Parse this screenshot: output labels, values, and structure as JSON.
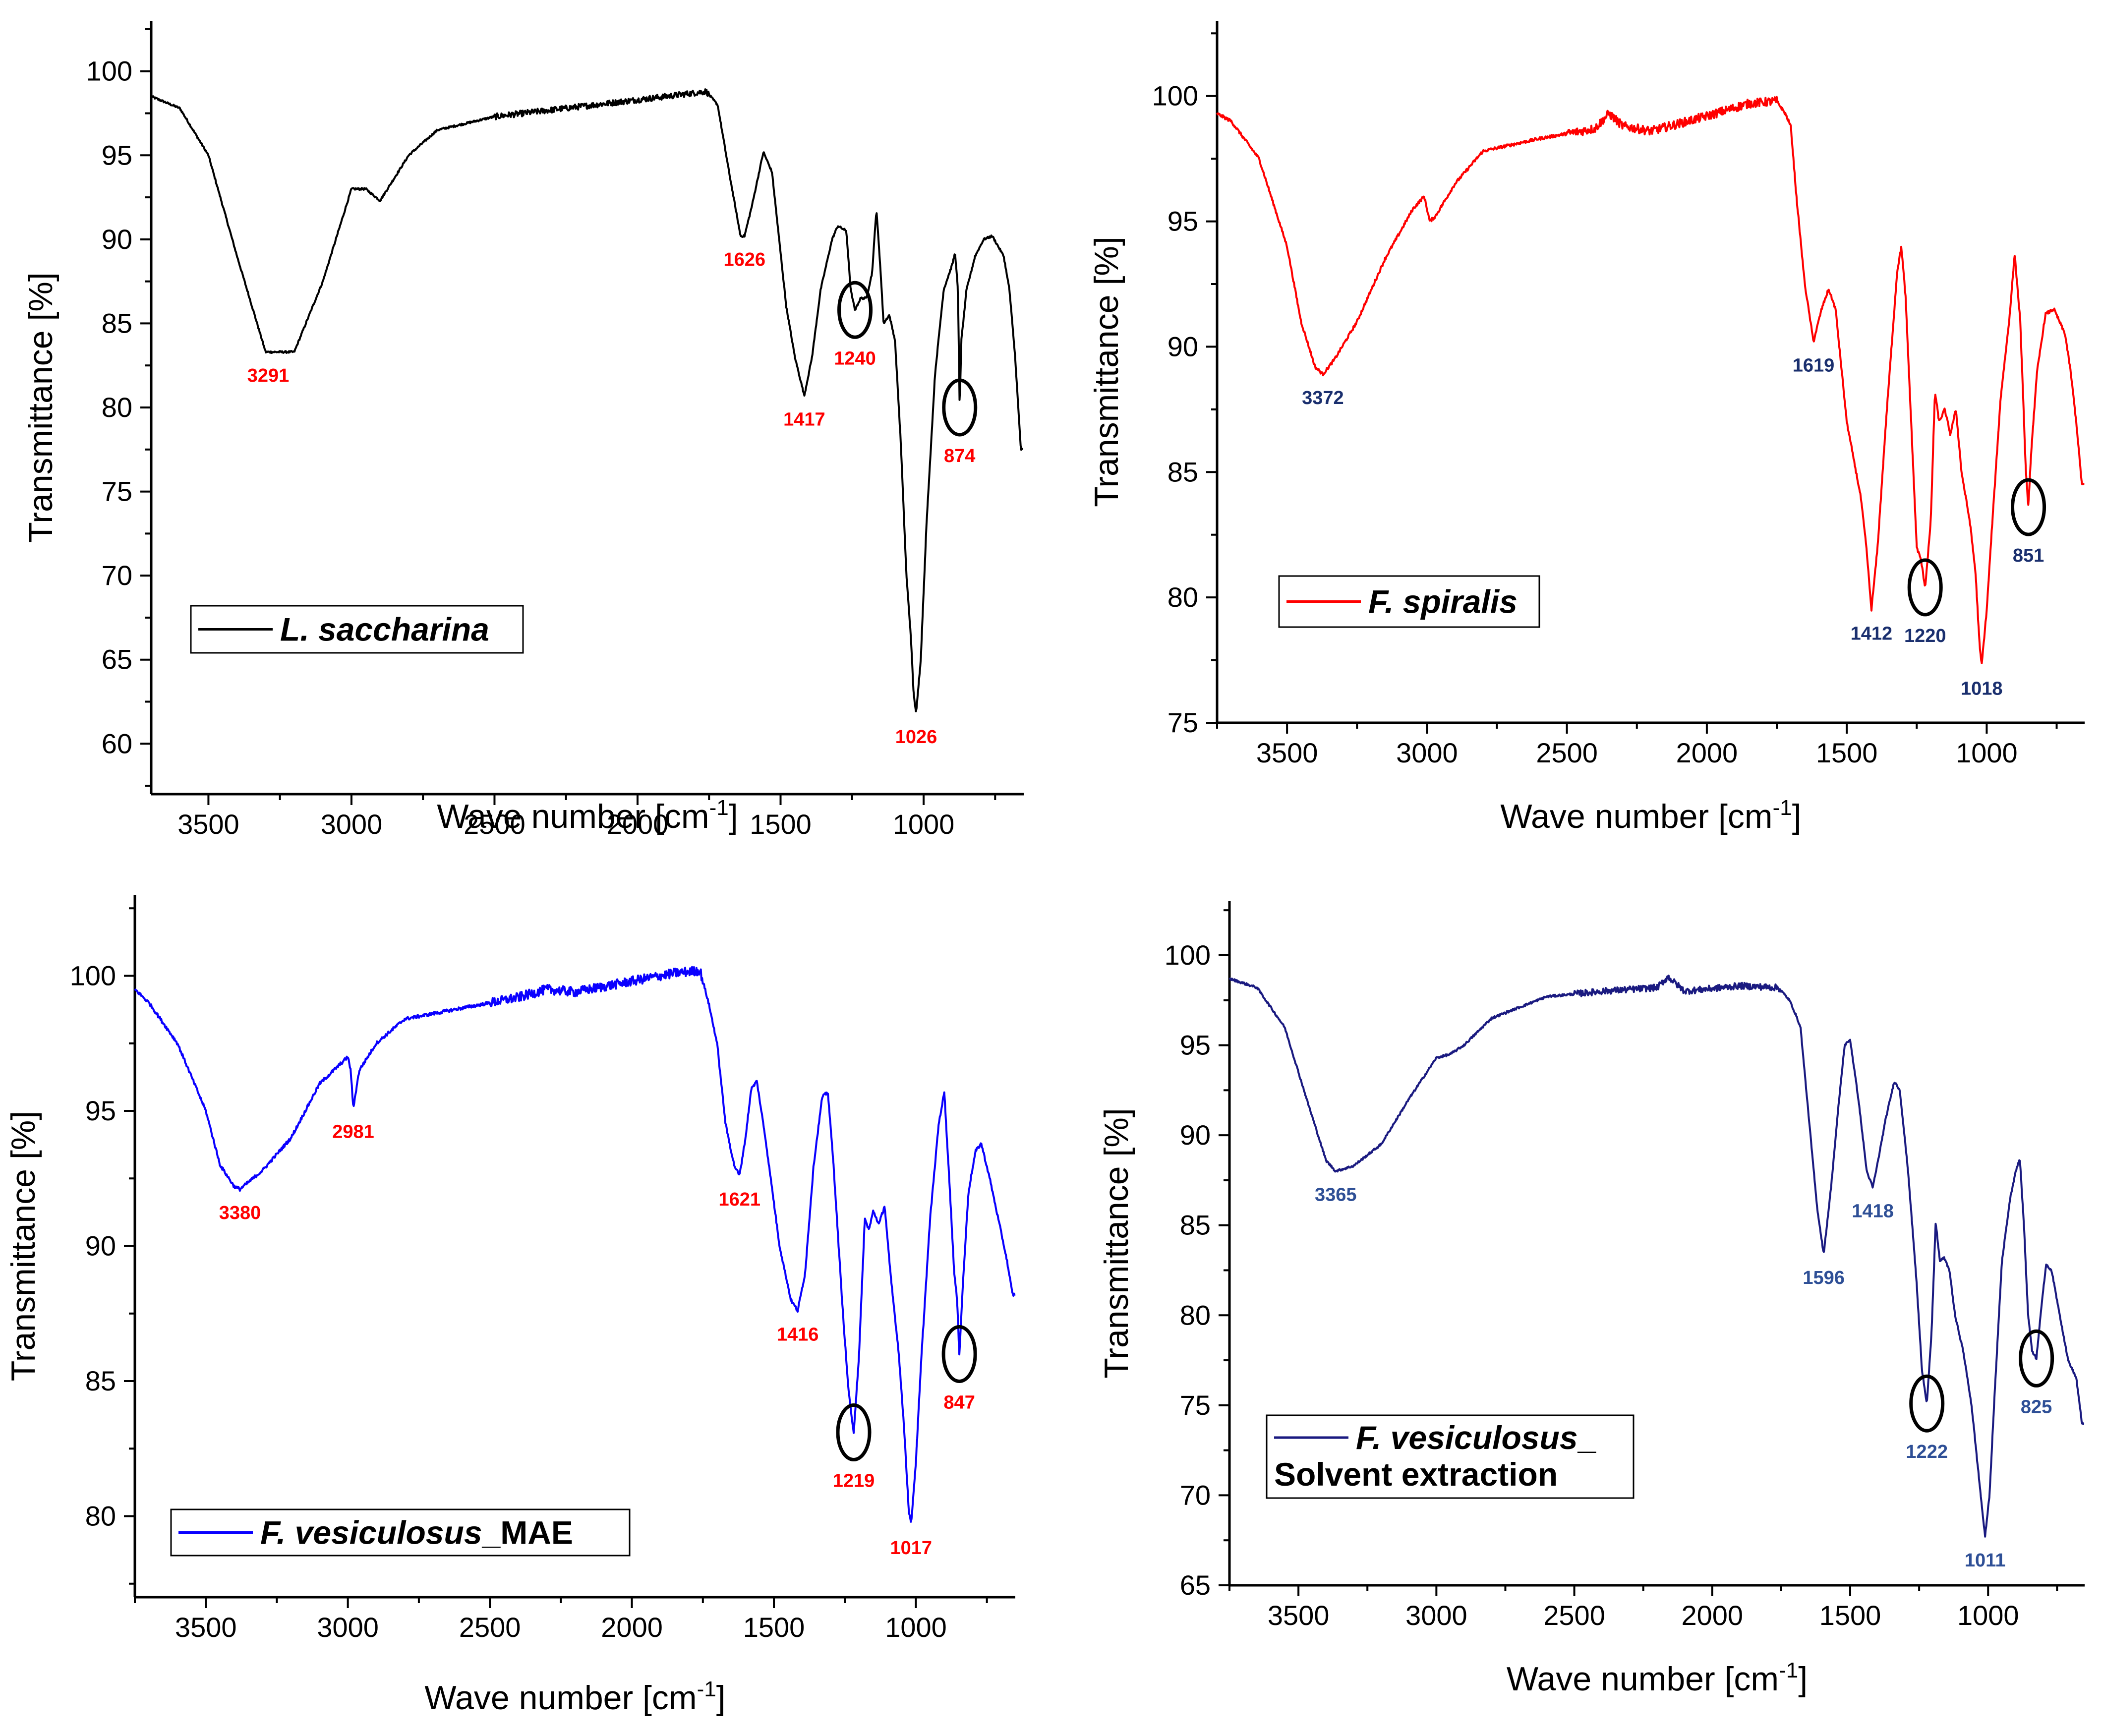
{
  "chart_data": [
    {
      "type": "line",
      "panel": "top-left",
      "series_name": "L. saccharina",
      "legend_italic": "L. saccharina",
      "legend_plain": "",
      "legend_second_line": "",
      "color": "#000000",
      "label_color": "#ff0000",
      "xlabel_main": "Wave number [cm",
      "xlabel_sup": "-1",
      "xlabel_end": "]",
      "ylabel": "Transmittance [%]",
      "xlim": [
        3700,
        650
      ],
      "ylim": [
        57,
        103
      ],
      "xticks": [
        3500,
        3000,
        2500,
        2000,
        1500,
        1000
      ],
      "yticks": [
        60,
        65,
        70,
        75,
        80,
        85,
        90,
        95,
        100
      ],
      "legend_position": "bottom-left",
      "points": [
        [
          3700,
          98.5
        ],
        [
          3600,
          97.8
        ],
        [
          3500,
          95
        ],
        [
          3400,
          89
        ],
        [
          3300,
          83.3
        ],
        [
          3200,
          83.3
        ],
        [
          3100,
          87.5
        ],
        [
          3000,
          93
        ],
        [
          2950,
          93
        ],
        [
          2900,
          92.3
        ],
        [
          2800,
          95
        ],
        [
          2700,
          96.5
        ],
        [
          2500,
          97.3
        ],
        [
          2300,
          97.7
        ],
        [
          2100,
          98.1
        ],
        [
          1900,
          98.5
        ],
        [
          1760,
          98.8
        ],
        [
          1720,
          98
        ],
        [
          1680,
          94
        ],
        [
          1640,
          90.2
        ],
        [
          1626,
          90.2
        ],
        [
          1600,
          92
        ],
        [
          1560,
          95.2
        ],
        [
          1530,
          94
        ],
        [
          1480,
          86
        ],
        [
          1450,
          83
        ],
        [
          1417,
          80.7
        ],
        [
          1390,
          83
        ],
        [
          1360,
          87
        ],
        [
          1320,
          90
        ],
        [
          1300,
          90.8
        ],
        [
          1270,
          90.5
        ],
        [
          1255,
          87
        ],
        [
          1240,
          85.8
        ],
        [
          1220,
          86.5
        ],
        [
          1200,
          86.5
        ],
        [
          1180,
          88
        ],
        [
          1165,
          91.8
        ],
        [
          1150,
          88
        ],
        [
          1140,
          85
        ],
        [
          1120,
          85.5
        ],
        [
          1100,
          84
        ],
        [
          1080,
          78
        ],
        [
          1060,
          70
        ],
        [
          1045,
          66.5
        ],
        [
          1035,
          63
        ],
        [
          1026,
          61.8
        ],
        [
          1010,
          65
        ],
        [
          990,
          73
        ],
        [
          960,
          82
        ],
        [
          930,
          87
        ],
        [
          900,
          88.5
        ],
        [
          890,
          89.2
        ],
        [
          880,
          87
        ],
        [
          874,
          80
        ],
        [
          868,
          84
        ],
        [
          850,
          87
        ],
        [
          820,
          89
        ],
        [
          790,
          90
        ],
        [
          760,
          90.2
        ],
        [
          720,
          89
        ],
        [
          700,
          87
        ],
        [
          680,
          83
        ],
        [
          660,
          77.5
        ]
      ],
      "peaks": [
        {
          "label": "3291",
          "x": 3291,
          "y": 83.3
        },
        {
          "label": "1626",
          "x": 1626,
          "y": 90.2
        },
        {
          "label": "1417",
          "x": 1417,
          "y": 80.7
        },
        {
          "label": "1240",
          "x": 1240,
          "y": 85.8,
          "circle": true
        },
        {
          "label": "874",
          "x": 874,
          "y": 80,
          "circle": true
        },
        {
          "label": "1026",
          "x": 1026,
          "y": 61.8
        }
      ]
    },
    {
      "type": "line",
      "panel": "top-right",
      "series_name": "F. spiralis",
      "legend_italic": "F. spiralis",
      "legend_plain": "",
      "legend_second_line": "",
      "color": "#ff0000",
      "label_color": "#1a2f6e",
      "xlabel_main": "Wave number [cm",
      "xlabel_sup": "-1",
      "xlabel_end": "]",
      "ylabel": "Transmittance [%]",
      "xlim": [
        3750,
        650
      ],
      "ylim": [
        75,
        103
      ],
      "xticks": [
        3500,
        3000,
        2500,
        2000,
        1500,
        1000
      ],
      "yticks": [
        75,
        80,
        85,
        90,
        95,
        100
      ],
      "legend_position": "bottom-left",
      "points": [
        [
          3750,
          99.3
        ],
        [
          3700,
          99
        ],
        [
          3600,
          97.5
        ],
        [
          3500,
          94
        ],
        [
          3450,
          91
        ],
        [
          3400,
          89.2
        ],
        [
          3372,
          88.9
        ],
        [
          3330,
          89.5
        ],
        [
          3250,
          91
        ],
        [
          3150,
          93.5
        ],
        [
          3050,
          95.5
        ],
        [
          3010,
          96
        ],
        [
          2990,
          95
        ],
        [
          2970,
          95.2
        ],
        [
          2900,
          96.5
        ],
        [
          2800,
          97.8
        ],
        [
          2600,
          98.3
        ],
        [
          2400,
          98.7
        ],
        [
          2350,
          99.3
        ],
        [
          2300,
          98.8
        ],
        [
          2200,
          98.6
        ],
        [
          2000,
          99.2
        ],
        [
          1850,
          99.7
        ],
        [
          1750,
          99.8
        ],
        [
          1720,
          99.3
        ],
        [
          1700,
          98.8
        ],
        [
          1680,
          96
        ],
        [
          1650,
          92.5
        ],
        [
          1619,
          90.2
        ],
        [
          1590,
          91.5
        ],
        [
          1565,
          92.3
        ],
        [
          1540,
          91.5
        ],
        [
          1500,
          87
        ],
        [
          1450,
          84
        ],
        [
          1430,
          82
        ],
        [
          1412,
          79.5
        ],
        [
          1390,
          82
        ],
        [
          1360,
          87
        ],
        [
          1320,
          93
        ],
        [
          1305,
          94
        ],
        [
          1290,
          92
        ],
        [
          1270,
          87
        ],
        [
          1250,
          82
        ],
        [
          1235,
          81.5
        ],
        [
          1220,
          80.4
        ],
        [
          1200,
          83
        ],
        [
          1185,
          88.2
        ],
        [
          1170,
          87
        ],
        [
          1150,
          87.5
        ],
        [
          1130,
          86.5
        ],
        [
          1110,
          87.5
        ],
        [
          1090,
          85
        ],
        [
          1060,
          83
        ],
        [
          1040,
          81
        ],
        [
          1025,
          78
        ],
        [
          1018,
          77.3
        ],
        [
          1000,
          79.5
        ],
        [
          980,
          83
        ],
        [
          950,
          88
        ],
        [
          920,
          91
        ],
        [
          900,
          93.7
        ],
        [
          880,
          91
        ],
        [
          870,
          88
        ],
        [
          860,
          85
        ],
        [
          851,
          83.6
        ],
        [
          840,
          86
        ],
        [
          820,
          89
        ],
        [
          790,
          91.3
        ],
        [
          760,
          91.5
        ],
        [
          720,
          90.5
        ],
        [
          700,
          89
        ],
        [
          680,
          87
        ],
        [
          660,
          84.5
        ]
      ],
      "peaks": [
        {
          "label": "3372",
          "x": 3372,
          "y": 88.9
        },
        {
          "label": "1619",
          "x": 1619,
          "y": 90.2
        },
        {
          "label": "1412",
          "x": 1412,
          "y": 79.5
        },
        {
          "label": "1220",
          "x": 1220,
          "y": 80.4,
          "circle": true
        },
        {
          "label": "1018",
          "x": 1018,
          "y": 77.3
        },
        {
          "label": "851",
          "x": 851,
          "y": 83.6,
          "circle": true
        }
      ]
    },
    {
      "type": "line",
      "panel": "bottom-left",
      "series_name": "F. vesiculosus_MAE",
      "legend_italic": "F. vesiculosus",
      "legend_plain": "_MAE",
      "legend_second_line": "",
      "color": "#0a00ff",
      "label_color": "#ff0000",
      "xlabel_main": "Wave number [cm",
      "xlabel_sup": "-1",
      "xlabel_end": "]",
      "ylabel": "Transmittance [%]",
      "xlim": [
        3750,
        650
      ],
      "ylim": [
        77,
        103
      ],
      "xticks": [
        3500,
        3000,
        2500,
        2000,
        1500,
        1000
      ],
      "yticks": [
        80,
        85,
        90,
        95,
        100
      ],
      "legend_position": "bottom-left",
      "points": [
        [
          3750,
          99.5
        ],
        [
          3700,
          99
        ],
        [
          3600,
          97.5
        ],
        [
          3500,
          95
        ],
        [
          3450,
          93
        ],
        [
          3400,
          92.2
        ],
        [
          3380,
          92.1
        ],
        [
          3300,
          92.8
        ],
        [
          3200,
          94
        ],
        [
          3100,
          96
        ],
        [
          3000,
          97
        ],
        [
          2990,
          96.5
        ],
        [
          2981,
          95.1
        ],
        [
          2960,
          96.5
        ],
        [
          2900,
          97.5
        ],
        [
          2800,
          98.4
        ],
        [
          2600,
          98.8
        ],
        [
          2400,
          99.2
        ],
        [
          2300,
          99.5
        ],
        [
          2200,
          99.4
        ],
        [
          2000,
          99.8
        ],
        [
          1850,
          100.1
        ],
        [
          1760,
          100.2
        ],
        [
          1730,
          99
        ],
        [
          1700,
          97.5
        ],
        [
          1670,
          94.5
        ],
        [
          1640,
          93
        ],
        [
          1621,
          92.6
        ],
        [
          1600,
          94
        ],
        [
          1580,
          95.8
        ],
        [
          1560,
          96.1
        ],
        [
          1530,
          94
        ],
        [
          1480,
          90
        ],
        [
          1440,
          88
        ],
        [
          1416,
          87.6
        ],
        [
          1390,
          89
        ],
        [
          1360,
          93
        ],
        [
          1330,
          95.5
        ],
        [
          1310,
          95.7
        ],
        [
          1290,
          93
        ],
        [
          1260,
          88
        ],
        [
          1240,
          85
        ],
        [
          1225,
          83.5
        ],
        [
          1219,
          83.1
        ],
        [
          1200,
          86
        ],
        [
          1180,
          91
        ],
        [
          1165,
          90.6
        ],
        [
          1150,
          91.3
        ],
        [
          1130,
          90.8
        ],
        [
          1110,
          91.5
        ],
        [
          1090,
          89
        ],
        [
          1060,
          86
        ],
        [
          1040,
          83
        ],
        [
          1025,
          80.2
        ],
        [
          1017,
          79.7
        ],
        [
          1000,
          82
        ],
        [
          980,
          86
        ],
        [
          950,
          91
        ],
        [
          920,
          94.5
        ],
        [
          900,
          95.7
        ],
        [
          880,
          92
        ],
        [
          865,
          89
        ],
        [
          855,
          88
        ],
        [
          847,
          86
        ],
        [
          835,
          88.5
        ],
        [
          815,
          92
        ],
        [
          790,
          93.5
        ],
        [
          770,
          93.8
        ],
        [
          740,
          92.5
        ],
        [
          710,
          91
        ],
        [
          680,
          89.5
        ],
        [
          660,
          88.2
        ]
      ],
      "peaks": [
        {
          "label": "3380",
          "x": 3380,
          "y": 92.1
        },
        {
          "label": "2981",
          "x": 2981,
          "y": 95.1
        },
        {
          "label": "1621",
          "x": 1621,
          "y": 92.6
        },
        {
          "label": "1416",
          "x": 1416,
          "y": 87.6
        },
        {
          "label": "1219",
          "x": 1219,
          "y": 83.1,
          "circle": true
        },
        {
          "label": "1017",
          "x": 1017,
          "y": 79.7
        },
        {
          "label": "847",
          "x": 847,
          "y": 86,
          "circle": true
        }
      ]
    },
    {
      "type": "line",
      "panel": "bottom-right",
      "series_name": "F. vesiculosus_ Solvent extraction",
      "legend_italic": "F. vesiculosus",
      "legend_plain": "_",
      "legend_second_line": "Solvent extraction",
      "color": "#1a1a80",
      "label_color": "#2e4f96",
      "xlabel_main": "Wave number [cm",
      "xlabel_sup": "-1",
      "xlabel_end": "]",
      "ylabel": "Transmittance [%]",
      "xlim": [
        3750,
        650
      ],
      "ylim": [
        65,
        103
      ],
      "xticks": [
        3500,
        3000,
        2500,
        2000,
        1500,
        1000
      ],
      "yticks": [
        65,
        70,
        75,
        80,
        85,
        90,
        95,
        100
      ],
      "legend_position": "bottom-left",
      "points": [
        [
          3750,
          98.7
        ],
        [
          3650,
          98.2
        ],
        [
          3550,
          96
        ],
        [
          3470,
          92
        ],
        [
          3400,
          88.6
        ],
        [
          3365,
          88
        ],
        [
          3300,
          88.3
        ],
        [
          3200,
          89.5
        ],
        [
          3100,
          92
        ],
        [
          3000,
          94.3
        ],
        [
          2950,
          94.5
        ],
        [
          2900,
          95
        ],
        [
          2800,
          96.5
        ],
        [
          2600,
          97.7
        ],
        [
          2400,
          98
        ],
        [
          2200,
          98.2
        ],
        [
          2160,
          98.8
        ],
        [
          2100,
          98
        ],
        [
          1900,
          98.3
        ],
        [
          1760,
          98.2
        ],
        [
          1720,
          97.5
        ],
        [
          1700,
          96.8
        ],
        [
          1680,
          96
        ],
        [
          1650,
          91
        ],
        [
          1620,
          86
        ],
        [
          1596,
          83.4
        ],
        [
          1570,
          87
        ],
        [
          1540,
          92
        ],
        [
          1520,
          95
        ],
        [
          1500,
          95.3
        ],
        [
          1470,
          92
        ],
        [
          1440,
          88
        ],
        [
          1418,
          87.1
        ],
        [
          1400,
          88.5
        ],
        [
          1370,
          91
        ],
        [
          1340,
          93
        ],
        [
          1320,
          92.5
        ],
        [
          1290,
          88
        ],
        [
          1260,
          82
        ],
        [
          1240,
          77
        ],
        [
          1222,
          75.1
        ],
        [
          1205,
          79
        ],
        [
          1190,
          85.2
        ],
        [
          1175,
          83
        ],
        [
          1160,
          83.2
        ],
        [
          1140,
          82.5
        ],
        [
          1120,
          80
        ],
        [
          1090,
          78
        ],
        [
          1060,
          75
        ],
        [
          1040,
          72
        ],
        [
          1020,
          69
        ],
        [
          1011,
          67.7
        ],
        [
          995,
          70
        ],
        [
          975,
          76
        ],
        [
          950,
          83
        ],
        [
          920,
          86.5
        ],
        [
          900,
          88
        ],
        [
          885,
          88.7
        ],
        [
          870,
          85
        ],
        [
          855,
          80
        ],
        [
          840,
          78
        ],
        [
          825,
          77.6
        ],
        [
          810,
          80
        ],
        [
          790,
          82.8
        ],
        [
          770,
          82.5
        ],
        [
          740,
          80
        ],
        [
          710,
          77.5
        ],
        [
          680,
          76.5
        ],
        [
          660,
          74
        ]
      ],
      "peaks": [
        {
          "label": "3365",
          "x": 3365,
          "y": 88
        },
        {
          "label": "1596",
          "x": 1596,
          "y": 83.4
        },
        {
          "label": "1418",
          "x": 1418,
          "y": 87.1
        },
        {
          "label": "1222",
          "x": 1222,
          "y": 75.1,
          "circle": true
        },
        {
          "label": "1011",
          "x": 1011,
          "y": 67.7
        },
        {
          "label": "825",
          "x": 825,
          "y": 77.6,
          "circle": true
        }
      ]
    }
  ]
}
